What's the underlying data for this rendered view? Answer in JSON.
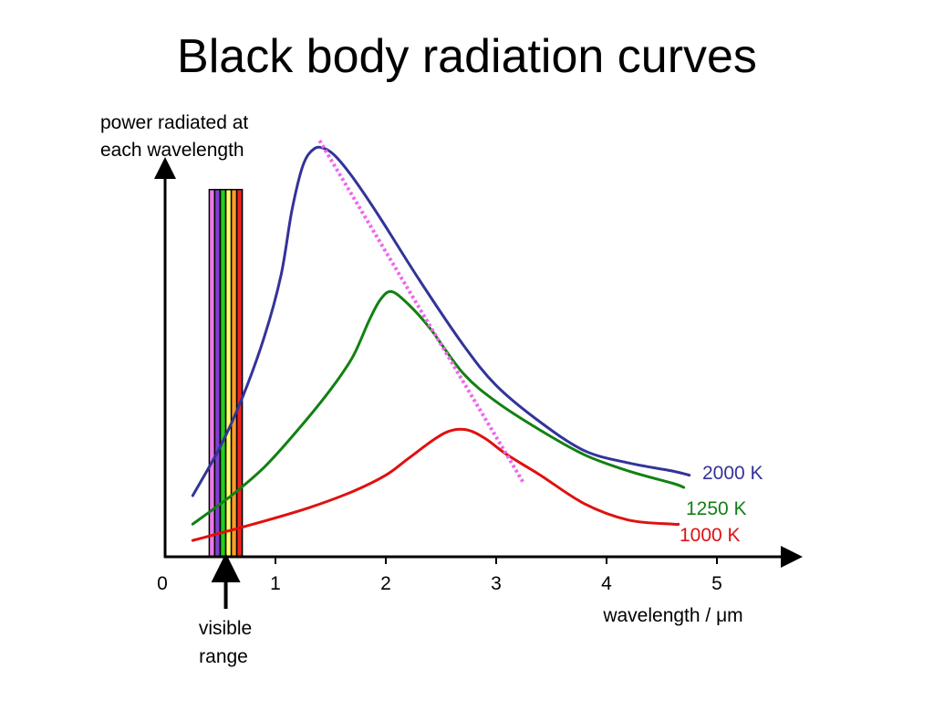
{
  "slide": {
    "title": "Black body radiation curves"
  },
  "chart_data": {
    "type": "line",
    "title": "Black body radiation curves",
    "ylabel_lines": [
      "power radiated at",
      "each wavelength"
    ],
    "xlabel": "wavelength / μm",
    "xlim": [
      0,
      5.6
    ],
    "ylim": [
      0,
      1
    ],
    "x_ticks": [
      0,
      1,
      2,
      3,
      4,
      5
    ],
    "x_tick_labels": [
      "0",
      "1",
      "2",
      "3",
      "4",
      "5"
    ],
    "y_ticks_shown": false,
    "grid": false,
    "series": [
      {
        "name": "2000 K",
        "color": "#333399",
        "points": [
          [
            0.25,
            0.15
          ],
          [
            0.5,
            0.27
          ],
          [
            0.7,
            0.39
          ],
          [
            0.9,
            0.54
          ],
          [
            1.05,
            0.69
          ],
          [
            1.15,
            0.85
          ],
          [
            1.25,
            0.96
          ],
          [
            1.35,
            1.0
          ],
          [
            1.45,
            1.0
          ],
          [
            1.55,
            0.98
          ],
          [
            1.7,
            0.93
          ],
          [
            1.95,
            0.83
          ],
          [
            2.3,
            0.68
          ],
          [
            2.7,
            0.52
          ],
          [
            3.0,
            0.42
          ],
          [
            3.4,
            0.33
          ],
          [
            3.8,
            0.26
          ],
          [
            4.2,
            0.23
          ],
          [
            4.6,
            0.21
          ],
          [
            4.75,
            0.2
          ]
        ]
      },
      {
        "name": "1250 K",
        "color": "#128012",
        "points": [
          [
            0.25,
            0.08
          ],
          [
            0.6,
            0.15
          ],
          [
            0.9,
            0.22
          ],
          [
            1.2,
            0.31
          ],
          [
            1.5,
            0.41
          ],
          [
            1.7,
            0.49
          ],
          [
            1.85,
            0.58
          ],
          [
            1.95,
            0.63
          ],
          [
            2.05,
            0.65
          ],
          [
            2.2,
            0.62
          ],
          [
            2.4,
            0.56
          ],
          [
            2.7,
            0.45
          ],
          [
            3.0,
            0.38
          ],
          [
            3.4,
            0.31
          ],
          [
            3.8,
            0.25
          ],
          [
            4.2,
            0.21
          ],
          [
            4.6,
            0.18
          ],
          [
            4.7,
            0.17
          ]
        ]
      },
      {
        "name": "1000 K",
        "color": "#e01010",
        "points": [
          [
            0.25,
            0.04
          ],
          [
            0.8,
            0.08
          ],
          [
            1.3,
            0.12
          ],
          [
            1.7,
            0.16
          ],
          [
            2.0,
            0.2
          ],
          [
            2.2,
            0.24
          ],
          [
            2.45,
            0.29
          ],
          [
            2.6,
            0.31
          ],
          [
            2.75,
            0.31
          ],
          [
            2.9,
            0.29
          ],
          [
            3.1,
            0.25
          ],
          [
            3.4,
            0.2
          ],
          [
            3.8,
            0.13
          ],
          [
            4.2,
            0.09
          ],
          [
            4.6,
            0.08
          ],
          [
            4.65,
            0.08
          ]
        ]
      }
    ],
    "peak_line": {
      "color": "#ee66ee",
      "points": [
        [
          1.4,
          1.02
        ],
        [
          3.25,
          0.18
        ]
      ]
    },
    "visible_band": {
      "x_range": [
        0.4,
        0.7
      ],
      "top": 0.9,
      "stripe_colors": [
        "#e87ae8",
        "#7f3fcf",
        "#22cc22",
        "#ffff66",
        "#ff9a2a",
        "#ee2222"
      ]
    },
    "annotations": {
      "visible_label_lines": [
        "visible",
        "range"
      ],
      "visible_arrow_x": 0.55
    }
  }
}
